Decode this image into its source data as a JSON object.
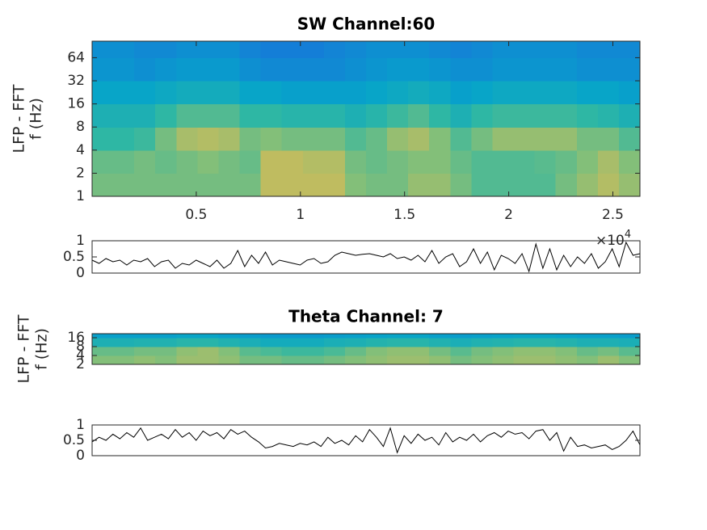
{
  "chart_data": [
    {
      "type": "heatmap",
      "title": "SW Channel:60",
      "ylabel": [
        "LFP - FFT",
        "f (Hz)"
      ],
      "log_y": true,
      "ylim": [
        1,
        105
      ],
      "yticks": [
        1,
        2,
        4,
        8,
        16,
        32,
        64
      ],
      "xlim": [
        0,
        2.63
      ],
      "xticks": [
        0.5,
        1,
        1.5,
        2,
        2.5
      ],
      "x_exponent_base": "×10",
      "x_exponent": 4,
      "clim": [
        0,
        1
      ],
      "colormap": [
        "#352a87",
        "#0f5cdd",
        "#1481d6",
        "#06a4ca",
        "#2eb7a4",
        "#87bf77",
        "#d1bb59",
        "#fec832",
        "#f9fb0e"
      ],
      "y_bins": [
        1,
        2,
        4,
        8,
        16,
        32,
        64,
        105
      ],
      "z": [
        [
          0.6,
          0.6,
          0.6,
          0.6,
          0.6,
          0.6,
          0.6,
          0.6,
          0.72,
          0.72,
          0.72,
          0.72,
          0.62,
          0.6,
          0.6,
          0.65,
          0.65,
          0.6,
          0.55,
          0.55,
          0.55,
          0.55,
          0.6,
          0.65,
          0.7,
          0.65
        ],
        [
          0.58,
          0.58,
          0.6,
          0.58,
          0.6,
          0.62,
          0.6,
          0.58,
          0.72,
          0.72,
          0.7,
          0.7,
          0.6,
          0.58,
          0.6,
          0.62,
          0.62,
          0.58,
          0.55,
          0.55,
          0.55,
          0.56,
          0.58,
          0.62,
          0.68,
          0.62
        ],
        [
          0.5,
          0.5,
          0.52,
          0.6,
          0.68,
          0.7,
          0.68,
          0.6,
          0.62,
          0.6,
          0.6,
          0.6,
          0.55,
          0.58,
          0.65,
          0.68,
          0.62,
          0.55,
          0.6,
          0.65,
          0.65,
          0.65,
          0.65,
          0.6,
          0.6,
          0.55
        ],
        [
          0.45,
          0.45,
          0.45,
          0.5,
          0.55,
          0.55,
          0.55,
          0.5,
          0.5,
          0.48,
          0.48,
          0.48,
          0.45,
          0.48,
          0.52,
          0.55,
          0.5,
          0.45,
          0.5,
          0.52,
          0.52,
          0.52,
          0.52,
          0.5,
          0.48,
          0.45
        ],
        [
          0.38,
          0.38,
          0.38,
          0.4,
          0.42,
          0.42,
          0.42,
          0.38,
          0.38,
          0.36,
          0.36,
          0.36,
          0.36,
          0.38,
          0.4,
          0.42,
          0.4,
          0.36,
          0.38,
          0.4,
          0.4,
          0.4,
          0.4,
          0.38,
          0.38,
          0.36
        ],
        [
          0.32,
          0.32,
          0.3,
          0.32,
          0.34,
          0.34,
          0.34,
          0.3,
          0.28,
          0.28,
          0.28,
          0.28,
          0.3,
          0.32,
          0.34,
          0.34,
          0.32,
          0.3,
          0.3,
          0.32,
          0.32,
          0.32,
          0.32,
          0.3,
          0.3,
          0.3
        ],
        [
          0.3,
          0.3,
          0.28,
          0.28,
          0.3,
          0.3,
          0.3,
          0.26,
          0.24,
          0.24,
          0.24,
          0.26,
          0.28,
          0.3,
          0.3,
          0.3,
          0.28,
          0.26,
          0.28,
          0.3,
          0.3,
          0.3,
          0.3,
          0.28,
          0.28,
          0.28
        ]
      ]
    },
    {
      "type": "line",
      "ylim": [
        0,
        1
      ],
      "yticks": [
        0,
        0.5,
        1
      ],
      "color": "#000000",
      "values": [
        0.4,
        0.3,
        0.45,
        0.35,
        0.4,
        0.25,
        0.4,
        0.35,
        0.45,
        0.2,
        0.35,
        0.4,
        0.15,
        0.3,
        0.25,
        0.4,
        0.3,
        0.2,
        0.4,
        0.15,
        0.3,
        0.7,
        0.2,
        0.55,
        0.3,
        0.65,
        0.25,
        0.4,
        0.35,
        0.3,
        0.25,
        0.4,
        0.45,
        0.3,
        0.35,
        0.55,
        0.65,
        0.6,
        0.55,
        0.58,
        0.6,
        0.55,
        0.5,
        0.6,
        0.45,
        0.5,
        0.4,
        0.55,
        0.35,
        0.7,
        0.3,
        0.5,
        0.6,
        0.2,
        0.35,
        0.75,
        0.3,
        0.65,
        0.1,
        0.55,
        0.45,
        0.3,
        0.6,
        0.05,
        0.9,
        0.15,
        0.75,
        0.1,
        0.55,
        0.2,
        0.5,
        0.3,
        0.6,
        0.15,
        0.35,
        0.75,
        0.2,
        0.95,
        0.55,
        0.6
      ]
    },
    {
      "type": "heatmap",
      "title": "Theta Channel: 7",
      "ylabel": [
        "LFP - FFT",
        "f (Hz)"
      ],
      "log_y": true,
      "ylim": [
        2,
        22
      ],
      "yticks": [
        2,
        4,
        8,
        16
      ],
      "clim": [
        0,
        1
      ],
      "colormap": [
        "#352a87",
        "#0f5cdd",
        "#1481d6",
        "#06a4ca",
        "#2eb7a4",
        "#87bf77",
        "#d1bb59",
        "#fec832",
        "#f9fb0e"
      ],
      "y_bins": [
        2,
        4,
        8,
        16,
        22
      ],
      "z": [
        [
          0.62,
          0.62,
          0.64,
          0.62,
          0.66,
          0.66,
          0.64,
          0.6,
          0.6,
          0.58,
          0.58,
          0.6,
          0.62,
          0.64,
          0.66,
          0.66,
          0.64,
          0.6,
          0.62,
          0.64,
          0.66,
          0.66,
          0.64,
          0.62,
          0.66,
          0.62
        ],
        [
          0.58,
          0.58,
          0.6,
          0.6,
          0.64,
          0.66,
          0.62,
          0.56,
          0.54,
          0.52,
          0.52,
          0.54,
          0.58,
          0.62,
          0.64,
          0.64,
          0.6,
          0.56,
          0.6,
          0.62,
          0.64,
          0.64,
          0.62,
          0.58,
          0.6,
          0.56
        ],
        [
          0.45,
          0.45,
          0.46,
          0.46,
          0.48,
          0.48,
          0.46,
          0.44,
          0.42,
          0.42,
          0.42,
          0.44,
          0.45,
          0.47,
          0.48,
          0.48,
          0.46,
          0.44,
          0.46,
          0.47,
          0.48,
          0.48,
          0.47,
          0.45,
          0.45,
          0.44
        ],
        [
          0.36,
          0.36,
          0.36,
          0.36,
          0.38,
          0.38,
          0.36,
          0.35,
          0.34,
          0.34,
          0.34,
          0.35,
          0.36,
          0.37,
          0.38,
          0.38,
          0.36,
          0.35,
          0.36,
          0.37,
          0.38,
          0.38,
          0.37,
          0.36,
          0.36,
          0.35
        ]
      ]
    },
    {
      "type": "line",
      "ylim": [
        0,
        1
      ],
      "yticks": [
        0,
        0.5,
        1
      ],
      "color": "#000000",
      "values": [
        0.45,
        0.6,
        0.5,
        0.7,
        0.55,
        0.75,
        0.6,
        0.9,
        0.5,
        0.6,
        0.7,
        0.55,
        0.85,
        0.6,
        0.75,
        0.5,
        0.8,
        0.65,
        0.75,
        0.55,
        0.85,
        0.7,
        0.8,
        0.6,
        0.45,
        0.25,
        0.3,
        0.4,
        0.35,
        0.3,
        0.4,
        0.35,
        0.45,
        0.3,
        0.6,
        0.4,
        0.5,
        0.35,
        0.65,
        0.45,
        0.85,
        0.6,
        0.3,
        0.9,
        0.1,
        0.65,
        0.4,
        0.7,
        0.5,
        0.6,
        0.35,
        0.75,
        0.45,
        0.6,
        0.5,
        0.7,
        0.45,
        0.65,
        0.75,
        0.6,
        0.8,
        0.7,
        0.75,
        0.55,
        0.8,
        0.85,
        0.5,
        0.75,
        0.15,
        0.6,
        0.3,
        0.35,
        0.25,
        0.3,
        0.35,
        0.2,
        0.3,
        0.5,
        0.8,
        0.35
      ]
    }
  ]
}
